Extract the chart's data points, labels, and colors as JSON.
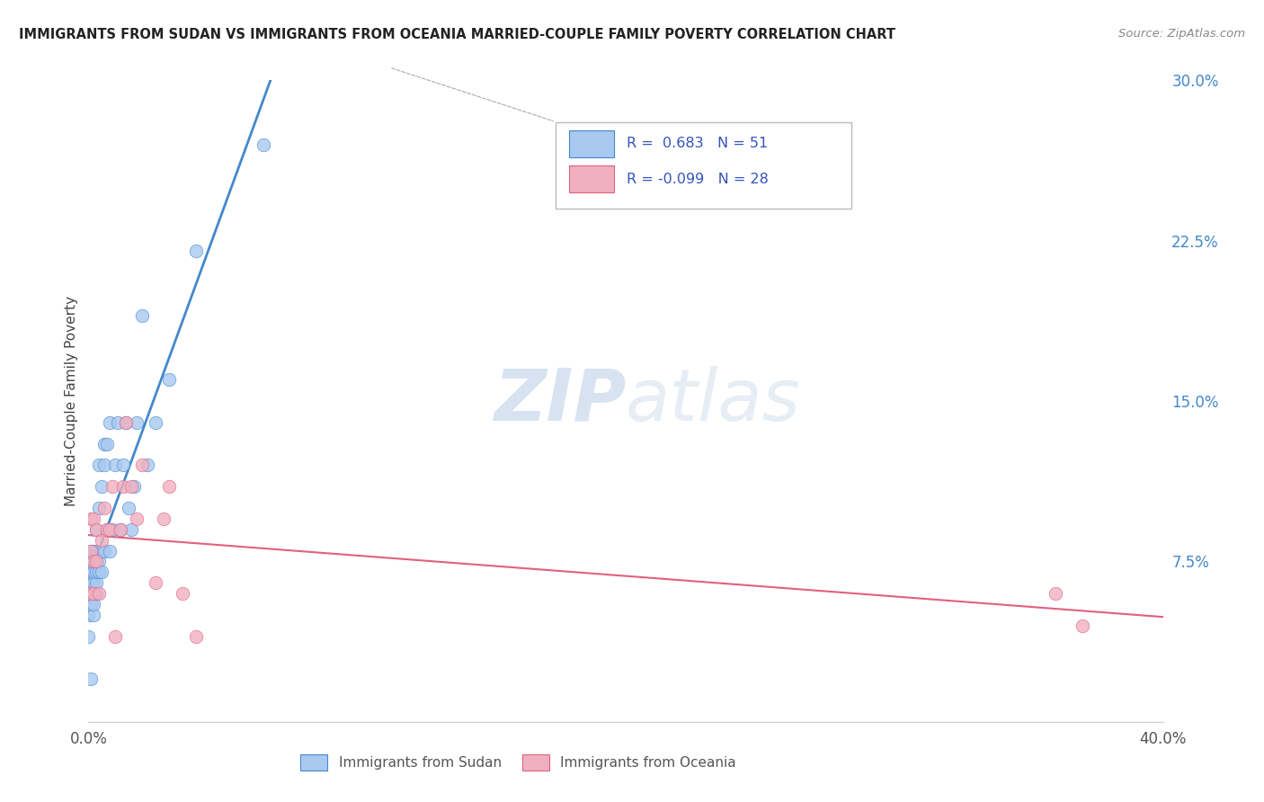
{
  "title": "IMMIGRANTS FROM SUDAN VS IMMIGRANTS FROM OCEANIA MARRIED-COUPLE FAMILY POVERTY CORRELATION CHART",
  "source": "Source: ZipAtlas.com",
  "ylabel": "Married-Couple Family Poverty",
  "xlim": [
    0,
    0.4
  ],
  "ylim": [
    0,
    0.3
  ],
  "xticks": [
    0.0,
    0.1,
    0.2,
    0.3,
    0.4
  ],
  "xtick_labels": [
    "0.0%",
    "",
    "",
    "",
    "40.0%"
  ],
  "yticks_right": [
    0.0,
    0.075,
    0.15,
    0.225,
    0.3
  ],
  "ytick_labels_right": [
    "",
    "7.5%",
    "15.0%",
    "22.5%",
    "30.0%"
  ],
  "sudan_R": 0.683,
  "sudan_N": 51,
  "oceania_R": -0.099,
  "oceania_N": 28,
  "sudan_color": "#a8c8f0",
  "sudan_line_color": "#4488cc",
  "oceania_color": "#f0b0c0",
  "oceania_line_color": "#e06080",
  "watermark_zip": "ZIP",
  "watermark_atlas": "atlas",
  "legend_color": "#3355bb",
  "sudan_x": [
    0.0,
    0.0,
    0.001,
    0.001,
    0.001,
    0.001,
    0.001,
    0.001,
    0.001,
    0.002,
    0.002,
    0.002,
    0.002,
    0.002,
    0.002,
    0.002,
    0.003,
    0.003,
    0.003,
    0.003,
    0.003,
    0.004,
    0.004,
    0.004,
    0.004,
    0.005,
    0.005,
    0.005,
    0.006,
    0.006,
    0.006,
    0.007,
    0.007,
    0.008,
    0.008,
    0.009,
    0.01,
    0.011,
    0.012,
    0.013,
    0.014,
    0.015,
    0.016,
    0.017,
    0.018,
    0.02,
    0.022,
    0.025,
    0.03,
    0.04,
    0.065
  ],
  "sudan_y": [
    0.05,
    0.04,
    0.055,
    0.06,
    0.065,
    0.07,
    0.075,
    0.08,
    0.02,
    0.05,
    0.055,
    0.06,
    0.065,
    0.07,
    0.075,
    0.08,
    0.06,
    0.065,
    0.07,
    0.08,
    0.09,
    0.07,
    0.075,
    0.1,
    0.12,
    0.07,
    0.08,
    0.11,
    0.08,
    0.12,
    0.13,
    0.09,
    0.13,
    0.08,
    0.14,
    0.09,
    0.12,
    0.14,
    0.09,
    0.12,
    0.14,
    0.1,
    0.09,
    0.11,
    0.14,
    0.19,
    0.12,
    0.14,
    0.16,
    0.22,
    0.27
  ],
  "oceania_x": [
    0.001,
    0.001,
    0.001,
    0.002,
    0.002,
    0.002,
    0.003,
    0.003,
    0.004,
    0.005,
    0.006,
    0.007,
    0.008,
    0.009,
    0.01,
    0.012,
    0.013,
    0.014,
    0.016,
    0.018,
    0.02,
    0.025,
    0.028,
    0.03,
    0.035,
    0.04,
    0.36,
    0.37
  ],
  "oceania_y": [
    0.06,
    0.08,
    0.095,
    0.06,
    0.075,
    0.095,
    0.075,
    0.09,
    0.06,
    0.085,
    0.1,
    0.09,
    0.09,
    0.11,
    0.04,
    0.09,
    0.11,
    0.14,
    0.11,
    0.095,
    0.12,
    0.065,
    0.095,
    0.11,
    0.06,
    0.04,
    0.06,
    0.045
  ]
}
